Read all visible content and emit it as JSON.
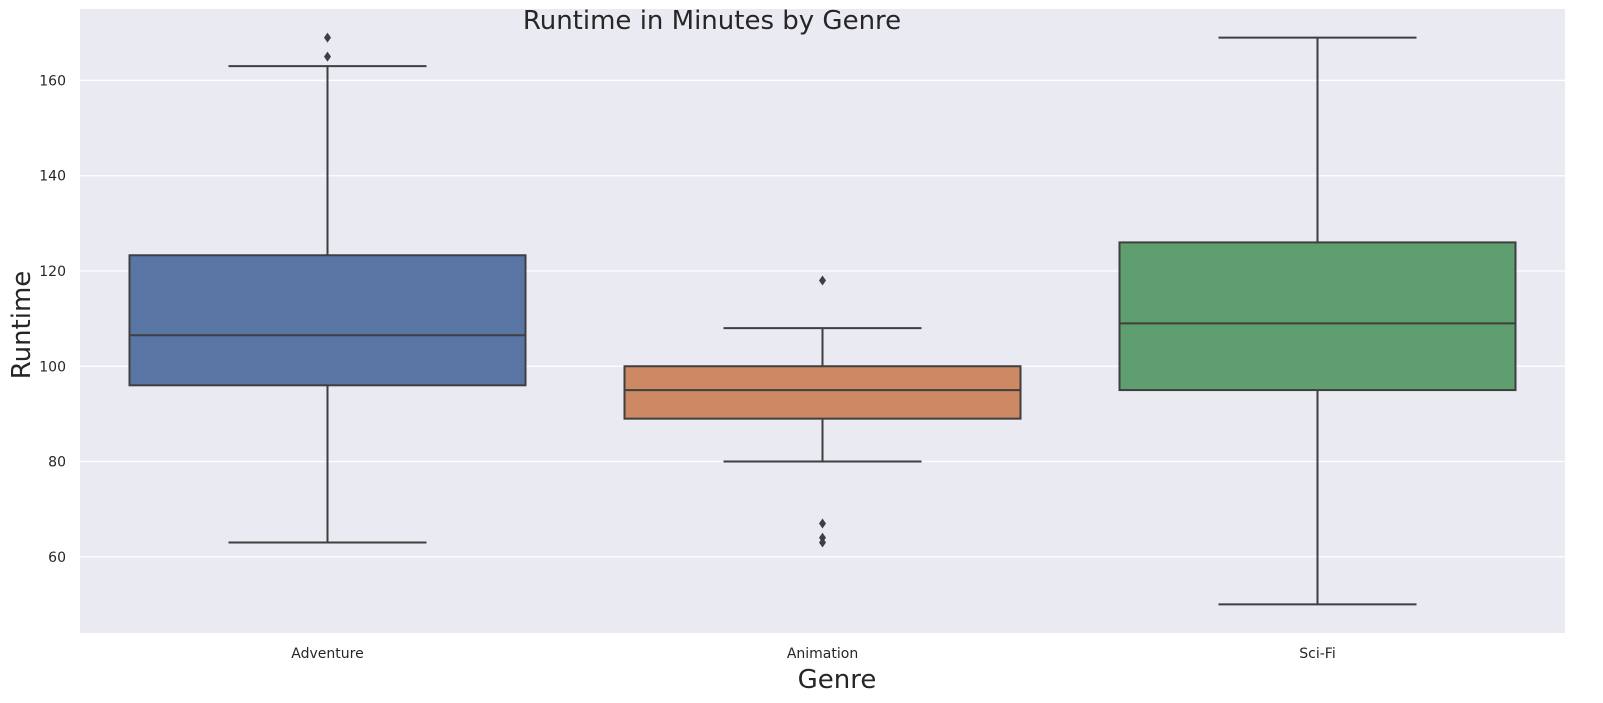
{
  "chart_data": {
    "type": "box",
    "title": "Runtime in Minutes by Genre",
    "xlabel": "Genre",
    "ylabel": "Runtime",
    "ylim": [
      44,
      175
    ],
    "yticks": [
      60,
      80,
      100,
      120,
      140,
      160
    ],
    "grid": true,
    "categories": [
      "Adventure",
      "Animation",
      "Sci-Fi"
    ],
    "boxes": [
      {
        "category": "Adventure",
        "color": "#5875a4",
        "whisker_low": 63,
        "q1": 96,
        "median": 106.5,
        "q3": 123.3,
        "whisker_high": 163,
        "outliers": [
          165,
          169
        ]
      },
      {
        "category": "Animation",
        "color": "#cc8963",
        "whisker_low": 80,
        "q1": 89,
        "median": 95,
        "q3": 100,
        "whisker_high": 108,
        "outliers": [
          118,
          67,
          64,
          63
        ]
      },
      {
        "category": "Sci-Fi",
        "color": "#5f9e6e",
        "whisker_low": 50,
        "q1": 95,
        "median": 109,
        "q3": 126,
        "whisker_high": 169,
        "outliers": []
      }
    ]
  },
  "colors": {
    "plot_background": "#eaeaf2",
    "grid": "#ffffff",
    "line": "#3f3f3f"
  }
}
